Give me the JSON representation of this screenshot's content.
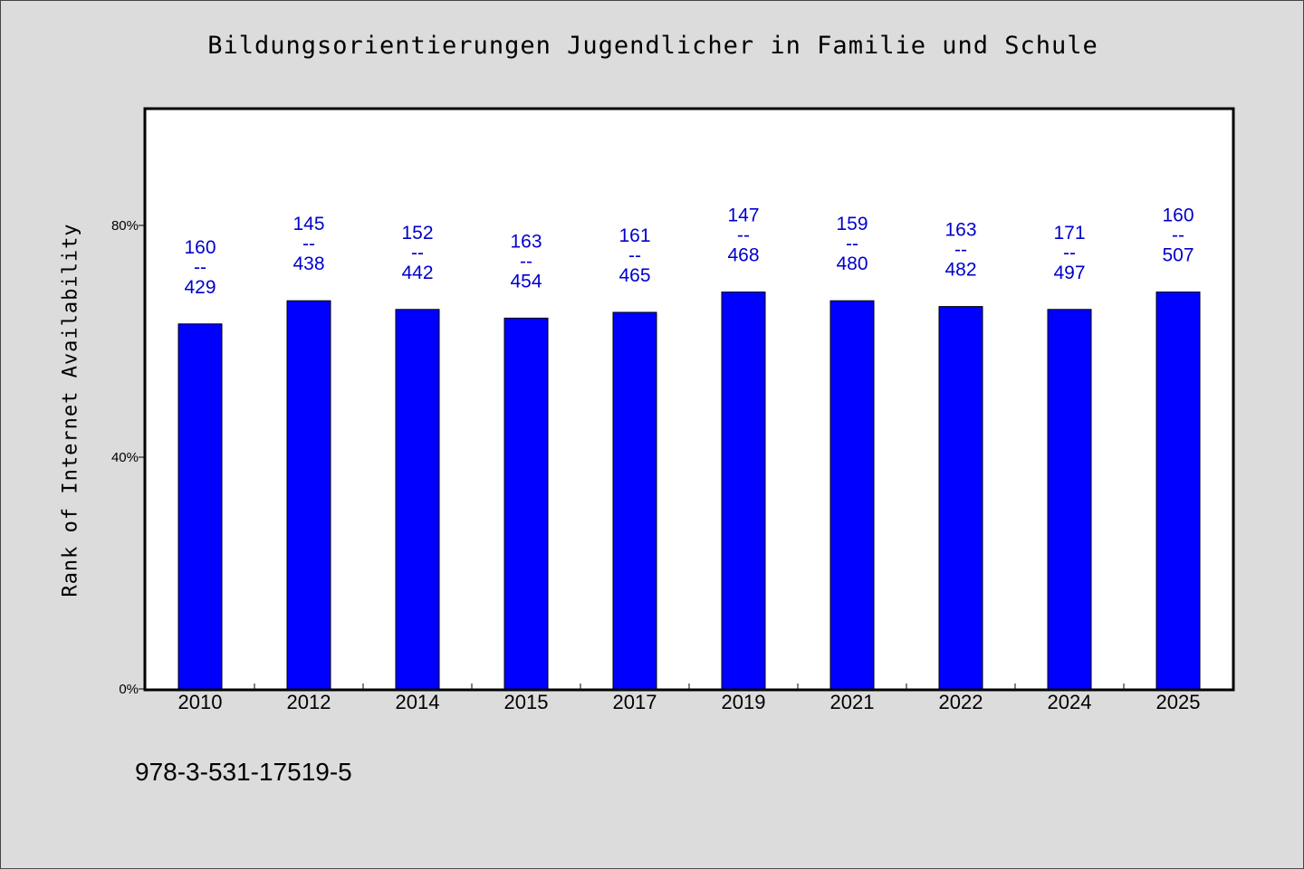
{
  "chart_data": {
    "type": "bar",
    "title": "Bildungsorientierungen Jugendlicher in Familie und Schule",
    "ylabel": "Rank of Internet Availability",
    "xlabel": "",
    "categories": [
      "2010",
      "2012",
      "2014",
      "2015",
      "2017",
      "2019",
      "2021",
      "2022",
      "2024",
      "2025"
    ],
    "values": [
      63,
      67,
      65.5,
      64,
      65,
      68.5,
      67,
      66,
      65.5,
      68.5
    ],
    "data_labels": [
      [
        "160",
        "--",
        "429"
      ],
      [
        "145",
        "--",
        "438"
      ],
      [
        "152",
        "--",
        "442"
      ],
      [
        "163",
        "--",
        "454"
      ],
      [
        "161",
        "--",
        "465"
      ],
      [
        "147",
        "--",
        "468"
      ],
      [
        "159",
        "--",
        "480"
      ],
      [
        "163",
        "--",
        "482"
      ],
      [
        "171",
        "--",
        "497"
      ],
      [
        "160",
        "--",
        "507"
      ]
    ],
    "ylim": [
      0,
      100
    ],
    "yticks": [
      0,
      40,
      80
    ],
    "ytick_labels": [
      "0%",
      "40%",
      "80%"
    ],
    "grid": false,
    "bar_color": "#0000ff",
    "label_color": "#0000cc"
  },
  "footer": {
    "code": "978-3-531-17519-5"
  }
}
